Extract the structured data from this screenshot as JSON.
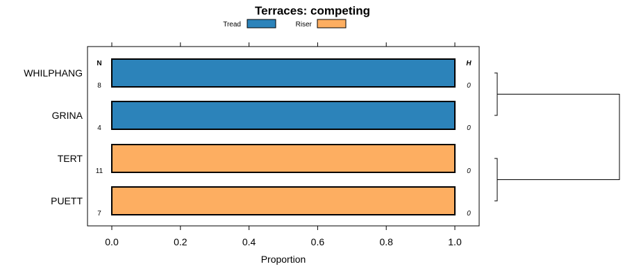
{
  "chart_data": {
    "type": "bar",
    "orientation": "horizontal",
    "stacked": true,
    "title": "Terraces: competing",
    "xlabel": "Proportion",
    "ylabel": "",
    "xlim": [
      -0.07,
      1.07
    ],
    "xticks": [
      "0.0",
      "0.2",
      "0.4",
      "0.6",
      "0.8",
      "1.0"
    ],
    "xtick_values": [
      0,
      0.2,
      0.4,
      0.6,
      0.8,
      1.0
    ],
    "legend": {
      "placement": "top",
      "entries": [
        {
          "name": "Tread",
          "color": "#2C83BA"
        },
        {
          "name": "Riser",
          "color": "#FDAE61"
        }
      ]
    },
    "n_header": "N",
    "h_header": "H",
    "categories": [
      "WHILPHANG",
      "GRINA",
      "TERT",
      "PUETT"
    ],
    "n_values": [
      "8",
      "4",
      "11",
      "7"
    ],
    "h_values": [
      "0",
      "0",
      "0",
      "0"
    ],
    "series": [
      {
        "name": "Tread",
        "values": [
          1,
          1,
          0,
          0
        ]
      },
      {
        "name": "Riser",
        "values": [
          0,
          0,
          1,
          1
        ]
      }
    ],
    "dendrogram": {
      "clusters": [
        [
          "WHILPHANG",
          "GRINA"
        ],
        [
          "TERT",
          "PUETT"
        ]
      ]
    }
  }
}
